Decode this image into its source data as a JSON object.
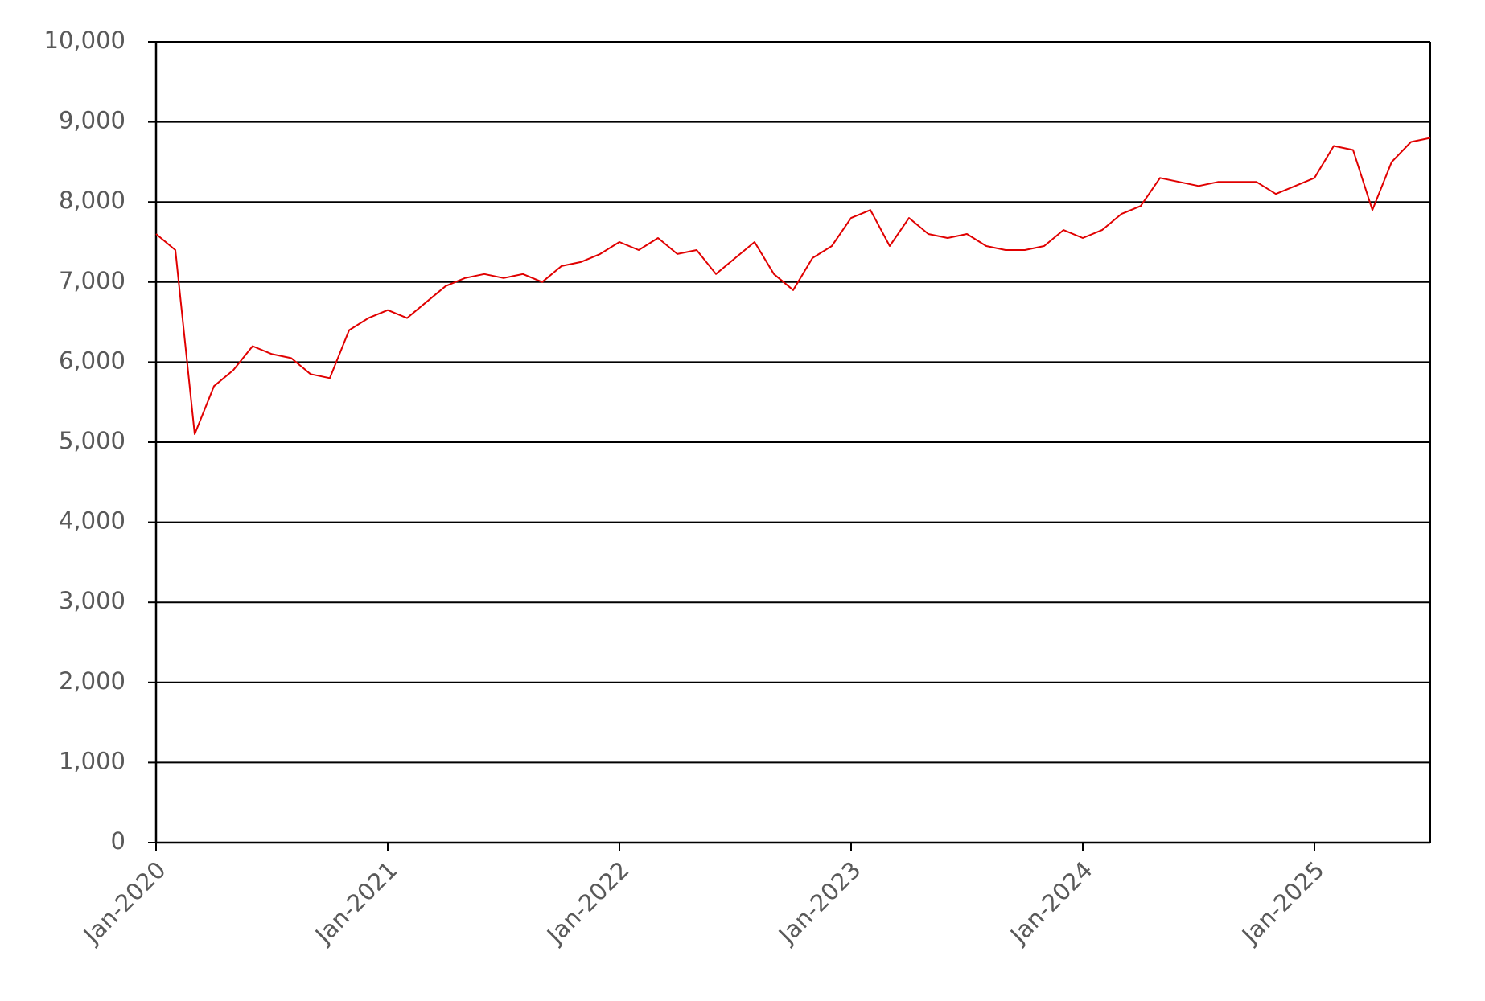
{
  "chart_data": {
    "type": "line",
    "x": [
      "2020-01",
      "2020-02",
      "2020-03",
      "2020-04",
      "2020-05",
      "2020-06",
      "2020-07",
      "2020-08",
      "2020-09",
      "2020-10",
      "2020-11",
      "2020-12",
      "2021-01",
      "2021-02",
      "2021-03",
      "2021-04",
      "2021-05",
      "2021-06",
      "2021-07",
      "2021-08",
      "2021-09",
      "2021-10",
      "2021-11",
      "2021-12",
      "2022-01",
      "2022-02",
      "2022-03",
      "2022-04",
      "2022-05",
      "2022-06",
      "2022-07",
      "2022-08",
      "2022-09",
      "2022-10",
      "2022-11",
      "2022-12",
      "2023-01",
      "2023-02",
      "2023-03",
      "2023-04",
      "2023-05",
      "2023-06",
      "2023-07",
      "2023-08",
      "2023-09",
      "2023-10",
      "2023-11",
      "2023-12",
      "2024-01",
      "2024-02",
      "2024-03",
      "2024-04",
      "2024-05",
      "2024-06",
      "2024-07",
      "2024-08",
      "2024-09",
      "2024-10",
      "2024-11",
      "2024-12",
      "2025-01",
      "2025-02",
      "2025-03",
      "2025-04",
      "2025-05",
      "2025-06",
      "2025-07"
    ],
    "values": [
      7600,
      7400,
      5100,
      5700,
      5900,
      6200,
      6100,
      6050,
      5850,
      5800,
      6400,
      6550,
      6650,
      6550,
      6750,
      6950,
      7050,
      7100,
      7050,
      7100,
      7000,
      7200,
      7250,
      7350,
      7500,
      7400,
      7550,
      7350,
      7400,
      7100,
      7300,
      7500,
      7100,
      6900,
      7300,
      7450,
      7800,
      7900,
      7450,
      7800,
      7600,
      7550,
      7600,
      7450,
      7400,
      7400,
      7450,
      7650,
      7550,
      7650,
      7850,
      7950,
      8300,
      8250,
      8200,
      8250,
      8250,
      8250,
      8100,
      8200,
      8300,
      8700,
      8650,
      7900,
      8500,
      8750,
      8800
    ],
    "color": "#e00000",
    "xlim": [
      "2020-01",
      "2025-07"
    ],
    "xticks": [
      {
        "value": "2020-01",
        "label": "Jan-2020"
      },
      {
        "value": "2021-01",
        "label": "Jan-2021"
      },
      {
        "value": "2022-01",
        "label": "Jan-2022"
      },
      {
        "value": "2023-01",
        "label": "Jan-2023"
      },
      {
        "value": "2024-01",
        "label": "Jan-2024"
      },
      {
        "value": "2025-01",
        "label": "Jan-2025"
      }
    ],
    "ylim": [
      0,
      10000
    ],
    "yticks": [
      0,
      {
        "value": 1000,
        "label": "1,000"
      },
      {
        "value": 2000,
        "label": "2,000"
      },
      {
        "value": 3000,
        "label": "3,000"
      },
      {
        "value": 4000,
        "label": "4,000"
      },
      {
        "value": 5000,
        "label": "5,000"
      },
      {
        "value": 6000,
        "label": "6,000"
      },
      {
        "value": 7000,
        "label": "7,000"
      },
      {
        "value": 8000,
        "label": "8,000"
      },
      {
        "value": 9000,
        "label": "9,000"
      },
      {
        "value": 10000,
        "label": "10,000"
      }
    ],
    "grid": true
  }
}
